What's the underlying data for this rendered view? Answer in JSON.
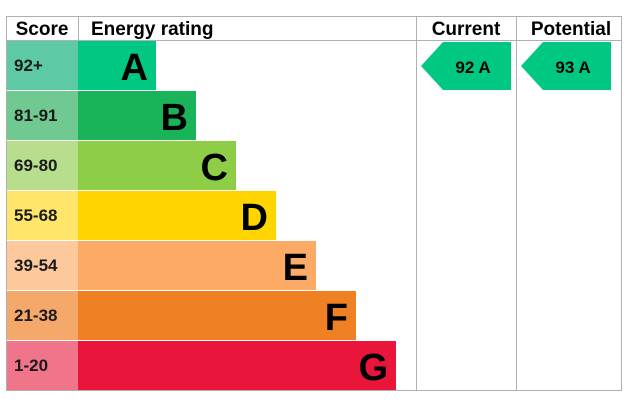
{
  "header": {
    "score": "Score",
    "energy_rating": "Energy rating",
    "current": "Current",
    "potential": "Potential"
  },
  "chart_data": {
    "type": "bar",
    "bands": [
      {
        "score": "92+",
        "letter": "A",
        "color": "#00C781",
        "score_bg": "#5DC9A5",
        "score_min": 92,
        "score_max": 100
      },
      {
        "score": "81-91",
        "letter": "B",
        "color": "#19B459",
        "score_bg": "#6FC990",
        "score_min": 81,
        "score_max": 91
      },
      {
        "score": "69-80",
        "letter": "C",
        "color": "#8DCE46",
        "score_bg": "#B6DE8C",
        "score_min": 69,
        "score_max": 80
      },
      {
        "score": "55-68",
        "letter": "D",
        "color": "#FFD500",
        "score_bg": "#FFE66A",
        "score_min": 55,
        "score_max": 68
      },
      {
        "score": "39-54",
        "letter": "E",
        "color": "#FCAA65",
        "score_bg": "#FDC89C",
        "score_min": 39,
        "score_max": 54
      },
      {
        "score": "21-38",
        "letter": "F",
        "color": "#EF8023",
        "score_bg": "#F4A86A",
        "score_min": 21,
        "score_max": 38
      },
      {
        "score": "1-20",
        "letter": "G",
        "color": "#E9153B",
        "score_bg": "#F0758A",
        "score_min": 1,
        "score_max": 20
      }
    ],
    "current": {
      "label": "92 A",
      "value": 92,
      "band": "A",
      "color": "#00C781"
    },
    "potential": {
      "label": "93 A",
      "value": 93,
      "band": "A",
      "color": "#00C781"
    }
  }
}
